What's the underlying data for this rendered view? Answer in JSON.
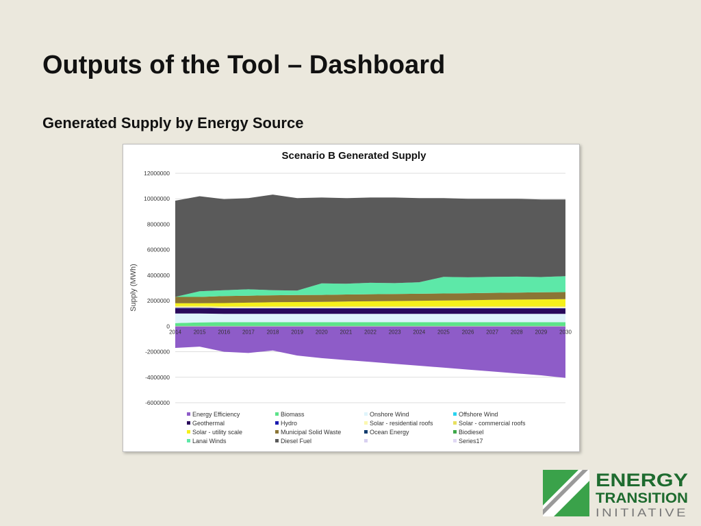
{
  "slide": {
    "title": "Outputs of the Tool – Dashboard",
    "subtitle": "Generated Supply by Energy Source"
  },
  "logo": {
    "line1": "ENERGY",
    "line2": "TRANSITION",
    "line3": "INITIATIVE",
    "colors": {
      "green": "#3aa24a",
      "gray": "#9a9a9a",
      "text": "#1e6b2f"
    }
  },
  "chart_data": {
    "type": "area",
    "title": "Scenario B Generated Supply",
    "ylabel": "Supply (MWh)",
    "xlabel": "",
    "ylim": [
      -6000000,
      12000000
    ],
    "yticks": [
      12000000,
      10000000,
      8000000,
      6000000,
      4000000,
      2000000,
      0,
      -2000000,
      -4000000,
      -6000000
    ],
    "x": [
      2014,
      2015,
      2016,
      2017,
      2018,
      2019,
      2020,
      2021,
      2022,
      2023,
      2024,
      2025,
      2026,
      2027,
      2028,
      2029,
      2030
    ],
    "grid": true,
    "legend_position": "bottom",
    "series": [
      {
        "name": "Energy Efficiency",
        "color": "#8e5cc8",
        "values": [
          -1700000,
          -1600000,
          -2000000,
          -2100000,
          -1900000,
          -2300000,
          -2500000,
          -2650000,
          -2800000,
          -2950000,
          -3100000,
          -3250000,
          -3400000,
          -3550000,
          -3700000,
          -3850000,
          -4050000
        ]
      },
      {
        "name": "Biomass",
        "color": "#5ce38a",
        "values": [
          250000,
          300000,
          320000,
          320000,
          320000,
          320000,
          320000,
          320000,
          320000,
          320000,
          320000,
          320000,
          320000,
          320000,
          320000,
          320000,
          320000
        ]
      },
      {
        "name": "Onshore Wind",
        "color": "#dff4fb",
        "values": [
          750000,
          700000,
          650000,
          650000,
          650000,
          650000,
          650000,
          650000,
          650000,
          650000,
          650000,
          650000,
          650000,
          650000,
          650000,
          650000,
          650000
        ]
      },
      {
        "name": "Offshore Wind",
        "color": "#29d3f0",
        "values": [
          0,
          0,
          0,
          0,
          0,
          0,
          0,
          0,
          0,
          0,
          0,
          0,
          0,
          0,
          0,
          0,
          0
        ]
      },
      {
        "name": "Geothermal",
        "color": "#2a0a5c",
        "values": [
          400000,
          400000,
          400000,
          400000,
          400000,
          400000,
          400000,
          400000,
          400000,
          400000,
          400000,
          400000,
          400000,
          400000,
          400000,
          400000,
          400000
        ]
      },
      {
        "name": "Hydro",
        "color": "#1b1bb0",
        "values": [
          50000,
          50000,
          50000,
          50000,
          50000,
          50000,
          50000,
          50000,
          50000,
          50000,
          50000,
          50000,
          50000,
          50000,
          50000,
          50000,
          50000
        ]
      },
      {
        "name": "Solar - residential roofs",
        "color": "#fbf7b0",
        "values": [
          100000,
          100000,
          100000,
          100000,
          100000,
          100000,
          100000,
          100000,
          100000,
          100000,
          100000,
          100000,
          100000,
          100000,
          100000,
          100000,
          100000
        ]
      },
      {
        "name": "Solar - commercial roofs",
        "color": "#e8e060",
        "values": [
          50000,
          50000,
          50000,
          50000,
          50000,
          50000,
          50000,
          50000,
          50000,
          50000,
          50000,
          50000,
          50000,
          50000,
          50000,
          50000,
          50000
        ]
      },
      {
        "name": "Solar - utility scale",
        "color": "#f5f01a",
        "values": [
          200000,
          200000,
          250000,
          280000,
          310000,
          330000,
          340000,
          370000,
          390000,
          410000,
          430000,
          450000,
          470000,
          500000,
          520000,
          540000,
          560000
        ]
      },
      {
        "name": "Municipal Solid Waste",
        "color": "#8b7535",
        "values": [
          500000,
          500000,
          550000,
          550000,
          550000,
          550000,
          550000,
          550000,
          550000,
          550000,
          550000,
          550000,
          550000,
          550000,
          550000,
          550000,
          550000
        ]
      },
      {
        "name": "Ocean Energy",
        "color": "#123c6e",
        "values": [
          0,
          0,
          0,
          0,
          0,
          0,
          0,
          0,
          0,
          0,
          0,
          0,
          0,
          0,
          0,
          0,
          0
        ]
      },
      {
        "name": "Biodiesel",
        "color": "#3ea84a",
        "values": [
          0,
          0,
          0,
          0,
          0,
          0,
          0,
          0,
          0,
          0,
          0,
          0,
          0,
          0,
          0,
          0,
          0
        ]
      },
      {
        "name": "Lanai Winds",
        "color": "#5de8a8",
        "values": [
          0,
          450000,
          450000,
          500000,
          400000,
          350000,
          900000,
          850000,
          900000,
          850000,
          900000,
          1300000,
          1250000,
          1250000,
          1250000,
          1200000,
          1250000
        ]
      },
      {
        "name": "Diesel Fuel",
        "color": "#5a5a5a",
        "values": [
          7550000,
          7450000,
          7150000,
          7150000,
          7500000,
          7250000,
          6740000,
          6710000,
          6690000,
          6720000,
          6600000,
          6180000,
          6160000,
          6130000,
          6110000,
          6090000,
          6020000
        ]
      },
      {
        "name": "",
        "color": "#d8d0f0",
        "values": [
          0,
          0,
          0,
          0,
          0,
          0,
          0,
          0,
          0,
          0,
          0,
          0,
          0,
          0,
          0,
          0,
          0
        ]
      },
      {
        "name": "Series17",
        "color": "#e0d8f4",
        "values": [
          0,
          0,
          0,
          0,
          0,
          0,
          0,
          0,
          0,
          0,
          0,
          0,
          0,
          0,
          0,
          0,
          0
        ]
      }
    ],
    "legend_order": [
      "Energy Efficiency",
      "Biomass",
      "Onshore Wind",
      "Offshore Wind",
      "Geothermal",
      "Hydro",
      "Solar - residential roofs",
      "Solar - commercial roofs",
      "Solar - utility scale",
      "Municipal Solid Waste",
      "Ocean Energy",
      "Biodiesel",
      "Lanai Winds",
      "Diesel Fuel",
      "",
      "Series17"
    ]
  }
}
